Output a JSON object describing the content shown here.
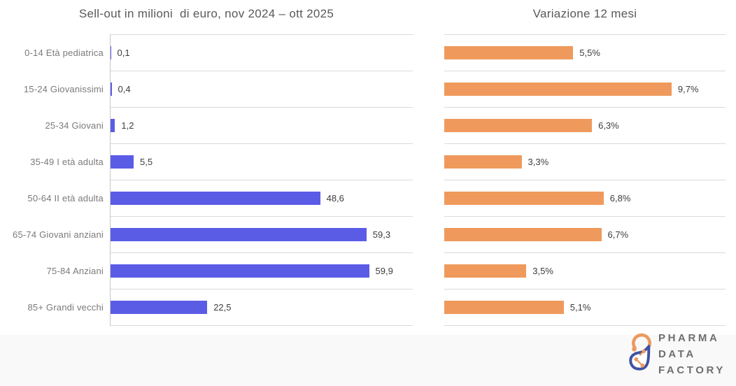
{
  "chart_data": [
    {
      "type": "bar",
      "orientation": "horizontal",
      "title": "Sell-out in milioni  di euro, nov 2024 – ott 2025",
      "categories": [
        "0-14 Età pediatrica",
        "15-24 Giovanissimi",
        "25-34 Giovani",
        "35-49 I età adulta",
        "50-64 II età adulta",
        "65-74 Giovani anziani",
        "75-84 Anziani",
        "85+ Grandi vecchi"
      ],
      "values": [
        0.1,
        0.4,
        1.2,
        5.5,
        48.6,
        59.3,
        59.9,
        22.5
      ],
      "value_labels": [
        "0,1",
        "0,4",
        "1,2",
        "5,5",
        "48,6",
        "59,3",
        "59,9",
        "22,5"
      ],
      "xlim": [
        0,
        70
      ],
      "bar_color": "#5b5ce6",
      "grid": "row-separators-horizontal",
      "legend": "none"
    },
    {
      "type": "bar",
      "orientation": "horizontal",
      "title": "Variazione 12 mesi",
      "categories": [
        "0-14 Età pediatrica",
        "15-24 Giovanissimi",
        "25-34 Giovani",
        "35-49 I età adulta",
        "50-64 II età adulta",
        "65-74 Giovani anziani",
        "75-84 Anziani",
        "85+ Grandi vecchi"
      ],
      "values": [
        5.5,
        9.7,
        6.3,
        3.3,
        6.8,
        6.7,
        3.5,
        5.1
      ],
      "value_labels": [
        "5,5%",
        "9,7%",
        "6,3%",
        "3,3%",
        "6,8%",
        "6,7%",
        "3,5%",
        "5,1%"
      ],
      "xlim": [
        0,
        12
      ],
      "bar_color": "#ef9a5c",
      "grid": "row-separators-horizontal",
      "legend": "none"
    }
  ],
  "logo": {
    "lines": [
      "PHARMA",
      "DATA",
      "FACTORY"
    ],
    "colors": {
      "orange": "#EC995E",
      "blue": "#3F51A3",
      "text": "#6E6E6E"
    }
  }
}
